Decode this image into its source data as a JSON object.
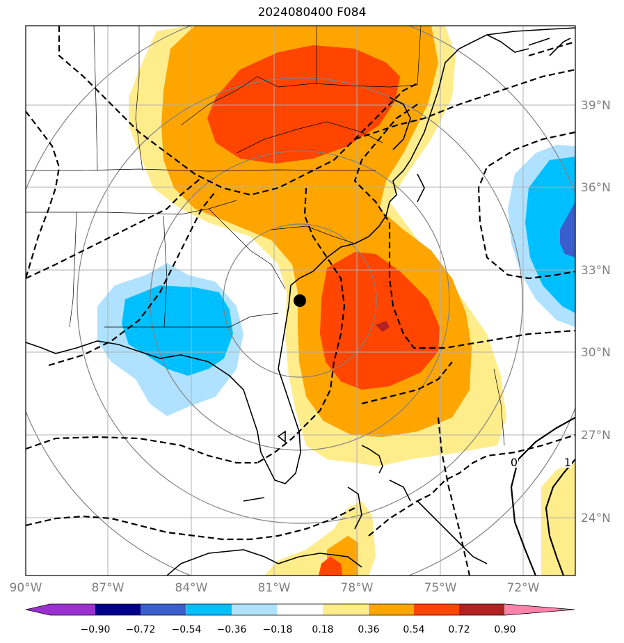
{
  "title": "2024080400 F084",
  "map": {
    "lon_labels": [
      "90°W",
      "87°W",
      "84°W",
      "81°W",
      "78°W",
      "75°W",
      "72°W"
    ],
    "lat_labels": [
      "39°N",
      "36°N",
      "33°N",
      "30°N",
      "27°N",
      "24°N"
    ],
    "contour_labels": [
      "0",
      "1"
    ],
    "marker": "station-dot"
  },
  "colorbar": {
    "ticks": [
      "−0.90",
      "−0.72",
      "−0.54",
      "−0.36",
      "−0.18",
      "0.18",
      "0.36",
      "0.54",
      "0.72",
      "0.90"
    ],
    "colors": [
      "#9b30d0",
      "#00008b",
      "#3a5fcd",
      "#00bfff",
      "#b0e2ff",
      "#ffffff",
      "#ffec8b",
      "#ffa500",
      "#ff4500",
      "#b22222",
      "#ff82ab"
    ]
  }
}
